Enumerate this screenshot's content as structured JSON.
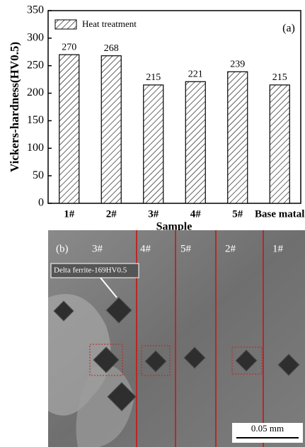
{
  "chart_data": {
    "type": "bar",
    "panel_label": "(a)",
    "x_label": "Sample",
    "y_label": "Vickers-hardness(HV0.5)",
    "categories": [
      "1#",
      "2#",
      "3#",
      "4#",
      "5#",
      "Base matal"
    ],
    "series": [
      {
        "name": "Heat treatment",
        "color": "#000000",
        "values": [
          270,
          268,
          215,
          221,
          239,
          215
        ]
      }
    ],
    "ylim": [
      0,
      350
    ],
    "yticks": [
      0,
      50,
      100,
      150,
      200,
      250,
      300,
      350
    ],
    "grid": false,
    "legend": "upper left"
  },
  "micrograph": {
    "panel_label": "(b)",
    "region_labels": [
      "3#",
      "4#",
      "5#",
      "2#",
      "1#"
    ],
    "annotation": "Delta ferrite-169HV0.5",
    "scale_bar": "0.05 mm"
  }
}
